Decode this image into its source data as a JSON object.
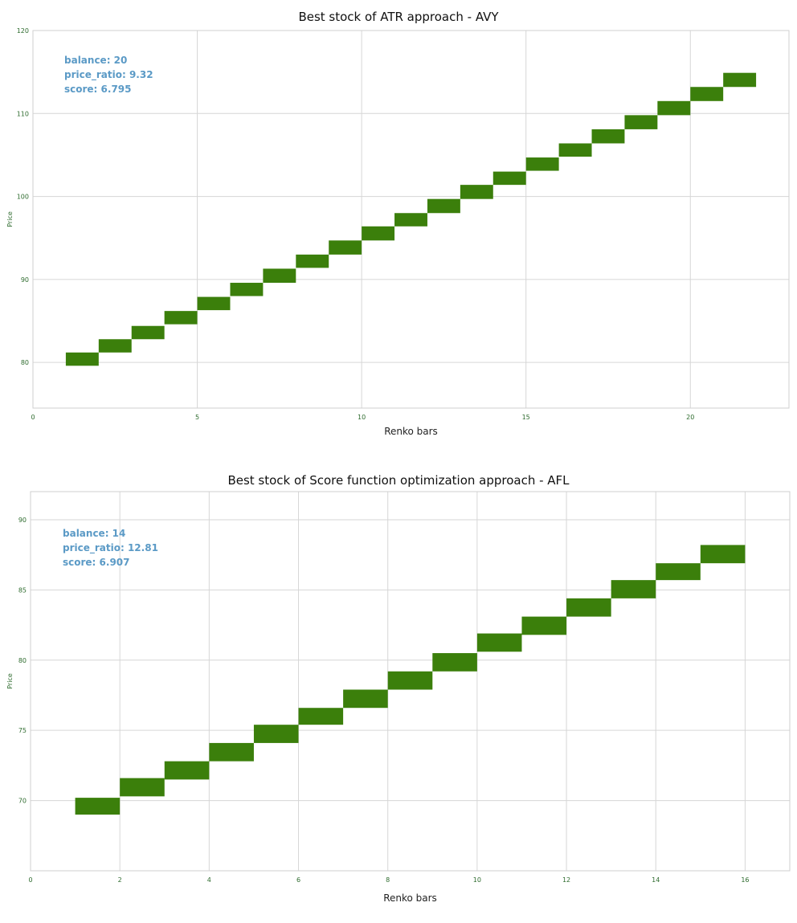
{
  "chart_data": [
    {
      "type": "bar",
      "subtype": "renko",
      "title": "Best stock of ATR approach - AVY",
      "xlabel": "Renko bars",
      "ylabel": "Price",
      "xlim": [
        0,
        23
      ],
      "ylim": [
        74.5,
        120
      ],
      "xticks": [
        0,
        5,
        10,
        15,
        20
      ],
      "yticks": [
        80,
        90,
        100,
        110,
        120
      ],
      "grid": true,
      "color": "#3b7f0b",
      "annotations": [
        "balance: 20",
        "price_ratio: 9.32",
        "score: 6.795"
      ],
      "bricks": [
        {
          "x": 1,
          "open": 79.6,
          "close": 81.2
        },
        {
          "x": 2,
          "open": 81.2,
          "close": 82.8
        },
        {
          "x": 3,
          "open": 82.8,
          "close": 84.4
        },
        {
          "x": 4,
          "open": 84.6,
          "close": 86.2
        },
        {
          "x": 5,
          "open": 86.3,
          "close": 87.9
        },
        {
          "x": 6,
          "open": 88.0,
          "close": 89.6
        },
        {
          "x": 7,
          "open": 89.6,
          "close": 91.3
        },
        {
          "x": 8,
          "open": 91.4,
          "close": 93.0
        },
        {
          "x": 9,
          "open": 93.0,
          "close": 94.7
        },
        {
          "x": 10,
          "open": 94.7,
          "close": 96.4
        },
        {
          "x": 11,
          "open": 96.4,
          "close": 98.0
        },
        {
          "x": 12,
          "open": 98.0,
          "close": 99.7
        },
        {
          "x": 13,
          "open": 99.7,
          "close": 101.4
        },
        {
          "x": 14,
          "open": 101.4,
          "close": 103.0
        },
        {
          "x": 15,
          "open": 103.1,
          "close": 104.7
        },
        {
          "x": 16,
          "open": 104.8,
          "close": 106.4
        },
        {
          "x": 17,
          "open": 106.4,
          "close": 108.1
        },
        {
          "x": 18,
          "open": 108.1,
          "close": 109.8
        },
        {
          "x": 19,
          "open": 109.8,
          "close": 111.5
        },
        {
          "x": 20,
          "open": 111.5,
          "close": 113.2
        },
        {
          "x": 21,
          "open": 113.2,
          "close": 114.9
        }
      ]
    },
    {
      "type": "bar",
      "subtype": "renko",
      "title": "Best stock of Score function optimization approach - AFL",
      "xlabel": "Renko bars",
      "ylabel": "Price",
      "xlim": [
        0,
        17
      ],
      "ylim": [
        65,
        92
      ],
      "xticks": [
        0,
        2,
        4,
        6,
        8,
        10,
        12,
        14,
        16
      ],
      "yticks": [
        70,
        75,
        80,
        85,
        90
      ],
      "grid": true,
      "color": "#3b7f0b",
      "annotations": [
        "balance: 14",
        "price_ratio: 12.81",
        "score: 6.907"
      ],
      "bricks": [
        {
          "x": 1,
          "open": 69.0,
          "close": 70.2
        },
        {
          "x": 2,
          "open": 70.3,
          "close": 71.6
        },
        {
          "x": 3,
          "open": 71.5,
          "close": 72.8
        },
        {
          "x": 4,
          "open": 72.8,
          "close": 74.1
        },
        {
          "x": 5,
          "open": 74.1,
          "close": 75.4
        },
        {
          "x": 6,
          "open": 75.4,
          "close": 76.6
        },
        {
          "x": 7,
          "open": 76.6,
          "close": 77.9
        },
        {
          "x": 8,
          "open": 77.9,
          "close": 79.2
        },
        {
          "x": 9,
          "open": 79.2,
          "close": 80.5
        },
        {
          "x": 10,
          "open": 80.6,
          "close": 81.9
        },
        {
          "x": 11,
          "open": 81.8,
          "close": 83.1
        },
        {
          "x": 12,
          "open": 83.1,
          "close": 84.4
        },
        {
          "x": 13,
          "open": 84.4,
          "close": 85.7
        },
        {
          "x": 14,
          "open": 85.7,
          "close": 86.9
        },
        {
          "x": 15,
          "open": 86.9,
          "close": 88.2
        }
      ]
    }
  ]
}
